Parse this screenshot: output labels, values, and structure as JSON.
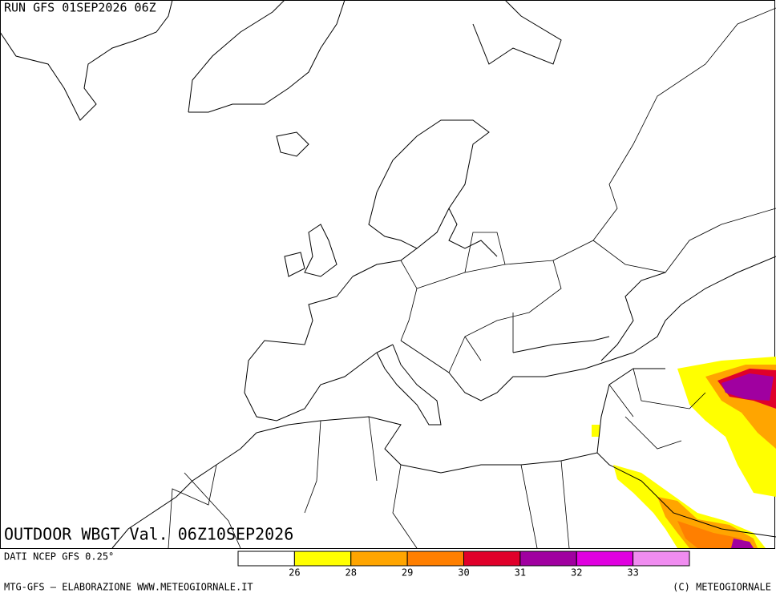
{
  "header": {
    "run": "RUN GFS 01SEP2026 06Z"
  },
  "map": {
    "title": "OUTDOOR WBGT Val. 06Z10SEP2026"
  },
  "footer": {
    "source": "DATI NCEP GFS 0.25°",
    "credit": "MTG-GFS — ELABORAZIONE WWW.METEOGIORNALE.IT",
    "copyright": "(C) METEOGIORNALE"
  },
  "legend": {
    "colors": [
      "#ffffff",
      "#ffff00",
      "#ffa500",
      "#ff7f00",
      "#e0002a",
      "#a000a0",
      "#e000e0",
      "#f08cf0"
    ],
    "labels": [
      26,
      28,
      29,
      30,
      31,
      32,
      33
    ]
  }
}
